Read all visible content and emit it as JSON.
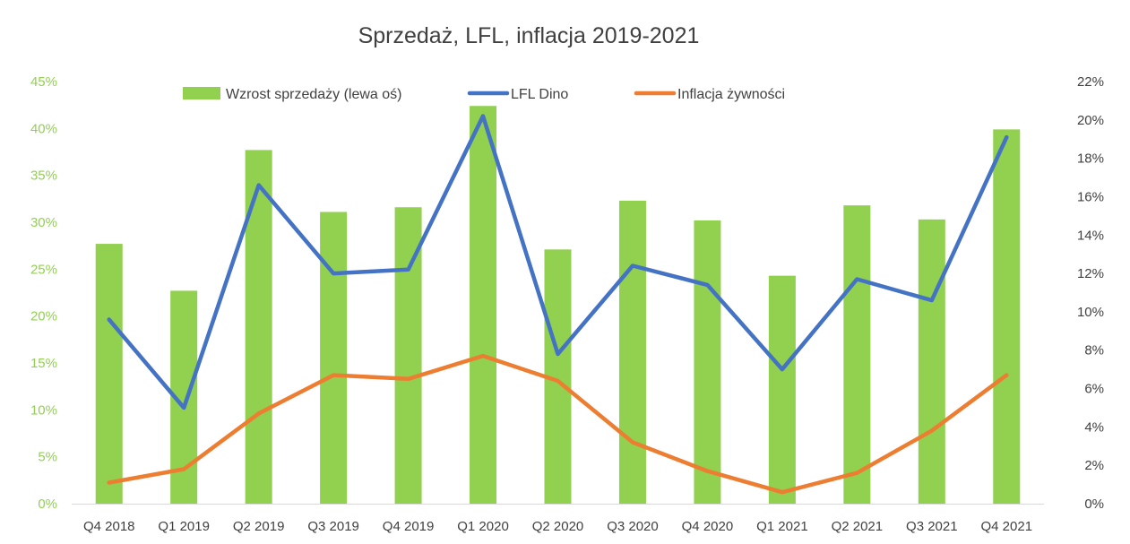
{
  "chart_data": {
    "type": "bar+line",
    "title": "Sprzedaż, LFL, inflacja 2019-2021",
    "categories": [
      "Q4 2018",
      "Q1 2019",
      "Q2 2019",
      "Q3 2019",
      "Q4 2019",
      "Q1 2020",
      "Q2 2020",
      "Q3 2020",
      "Q4 2020",
      "Q1 2021",
      "Q2 2021",
      "Q3 2021",
      "Q4 2021"
    ],
    "left_axis": {
      "ticks": [
        "0%",
        "5%",
        "10%",
        "15%",
        "20%",
        "25%",
        "30%",
        "35%",
        "40%",
        "45%"
      ],
      "ylim": [
        0,
        45
      ],
      "unit": "%"
    },
    "right_axis": {
      "ticks": [
        "0%",
        "2%",
        "4%",
        "6%",
        "8%",
        "10%",
        "12%",
        "14%",
        "16%",
        "18%",
        "20%",
        "22%"
      ],
      "ylim": [
        0,
        22
      ],
      "unit": "%"
    },
    "series": [
      {
        "name": "Wzrost sprzedaży (lewa oś)",
        "type": "bar",
        "axis": "left",
        "color": "#92d050",
        "values": [
          27.7,
          22.7,
          37.7,
          31.1,
          31.6,
          42.4,
          27.1,
          32.3,
          30.2,
          24.3,
          31.8,
          30.3,
          39.9
        ]
      },
      {
        "name": "LFL Dino",
        "type": "line",
        "axis": "right",
        "color": "#4472c4",
        "values": [
          9.6,
          5.0,
          16.6,
          12.0,
          12.2,
          20.2,
          7.8,
          12.4,
          11.4,
          7.0,
          11.7,
          10.6,
          19.1
        ]
      },
      {
        "name": "Inflacja żywności",
        "type": "line",
        "axis": "right",
        "color": "#ed7d31",
        "values": [
          1.1,
          1.8,
          4.7,
          6.7,
          6.5,
          7.7,
          6.4,
          3.2,
          1.7,
          0.6,
          1.6,
          3.8,
          6.7
        ]
      }
    ],
    "legend": "top-center",
    "grid": false
  }
}
